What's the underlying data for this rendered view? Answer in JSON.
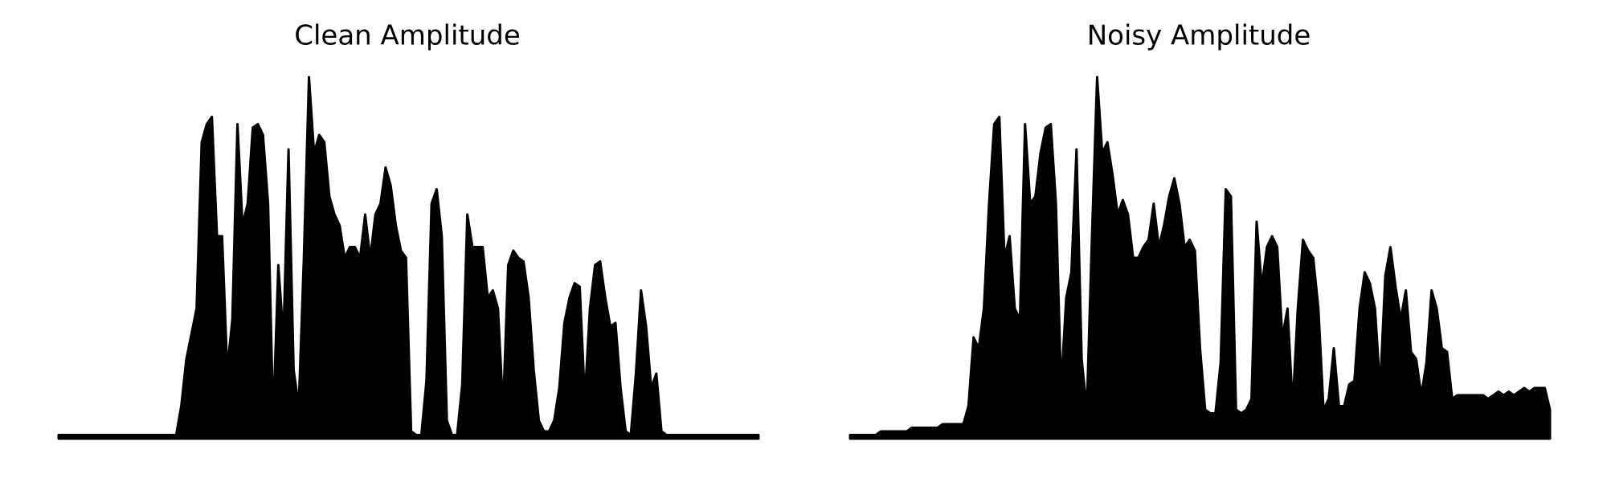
{
  "chart_data": [
    {
      "type": "area",
      "title": "Clean Amplitude",
      "color": "#000000",
      "ylim": [
        0,
        1
      ],
      "values": [
        0.01,
        0.01,
        0.01,
        0.01,
        0.01,
        0.01,
        0.01,
        0.01,
        0.01,
        0.01,
        0.01,
        0.01,
        0.01,
        0.01,
        0.01,
        0.01,
        0.01,
        0.01,
        0.01,
        0.01,
        0.01,
        0.01,
        0.01,
        0.01,
        0.09,
        0.22,
        0.29,
        0.36,
        0.82,
        0.87,
        0.89,
        0.56,
        0.56,
        0.19,
        0.33,
        0.87,
        0.59,
        0.65,
        0.86,
        0.87,
        0.84,
        0.65,
        0.05,
        0.48,
        0.28,
        0.8,
        0.19,
        0.09,
        0.5,
        1.0,
        0.79,
        0.84,
        0.82,
        0.67,
        0.62,
        0.59,
        0.5,
        0.53,
        0.53,
        0.5,
        0.62,
        0.5,
        0.62,
        0.65,
        0.75,
        0.7,
        0.59,
        0.52,
        0.5,
        0.02,
        0.01,
        0.01,
        0.16,
        0.65,
        0.69,
        0.56,
        0.05,
        0.01,
        0.01,
        0.15,
        0.62,
        0.53,
        0.53,
        0.53,
        0.39,
        0.41,
        0.36,
        0.08,
        0.48,
        0.52,
        0.5,
        0.49,
        0.39,
        0.19,
        0.05,
        0.02,
        0.02,
        0.05,
        0.14,
        0.32,
        0.39,
        0.43,
        0.42,
        0.11,
        0.36,
        0.48,
        0.49,
        0.39,
        0.31,
        0.32,
        0.14,
        0.02,
        0.01,
        0.18,
        0.41,
        0.31,
        0.14,
        0.18,
        0.02,
        0.01,
        0.01,
        0.01,
        0.01,
        0.01,
        0.01,
        0.01,
        0.01,
        0.01,
        0.01,
        0.01,
        0.01,
        0.01,
        0.01,
        0.01,
        0.01,
        0.01,
        0.01,
        0.01
      ]
    },
    {
      "type": "area",
      "title": "Noisy Amplitude",
      "color": "#000000",
      "ylim": [
        0,
        1
      ],
      "values": [
        0.01,
        0.01,
        0.01,
        0.01,
        0.01,
        0.01,
        0.02,
        0.02,
        0.02,
        0.02,
        0.02,
        0.02,
        0.03,
        0.03,
        0.03,
        0.03,
        0.03,
        0.03,
        0.04,
        0.04,
        0.04,
        0.04,
        0.04,
        0.09,
        0.28,
        0.25,
        0.36,
        0.65,
        0.87,
        0.89,
        0.5,
        0.56,
        0.36,
        0.33,
        0.87,
        0.65,
        0.67,
        0.79,
        0.86,
        0.87,
        0.65,
        0.14,
        0.39,
        0.46,
        0.8,
        0.22,
        0.08,
        0.56,
        1.0,
        0.79,
        0.82,
        0.73,
        0.62,
        0.66,
        0.62,
        0.5,
        0.5,
        0.53,
        0.55,
        0.65,
        0.53,
        0.59,
        0.67,
        0.72,
        0.65,
        0.53,
        0.55,
        0.52,
        0.25,
        0.08,
        0.07,
        0.07,
        0.21,
        0.69,
        0.67,
        0.08,
        0.07,
        0.08,
        0.11,
        0.6,
        0.42,
        0.53,
        0.56,
        0.53,
        0.28,
        0.36,
        0.09,
        0.36,
        0.55,
        0.52,
        0.5,
        0.36,
        0.08,
        0.11,
        0.25,
        0.09,
        0.09,
        0.15,
        0.16,
        0.36,
        0.46,
        0.43,
        0.36,
        0.14,
        0.45,
        0.53,
        0.42,
        0.33,
        0.41,
        0.24,
        0.22,
        0.12,
        0.21,
        0.41,
        0.36,
        0.25,
        0.24,
        0.11,
        0.12,
        0.12,
        0.12,
        0.12,
        0.12,
        0.12,
        0.11,
        0.12,
        0.13,
        0.12,
        0.13,
        0.12,
        0.13,
        0.14,
        0.13,
        0.14,
        0.14,
        0.14,
        0.08
      ]
    }
  ]
}
